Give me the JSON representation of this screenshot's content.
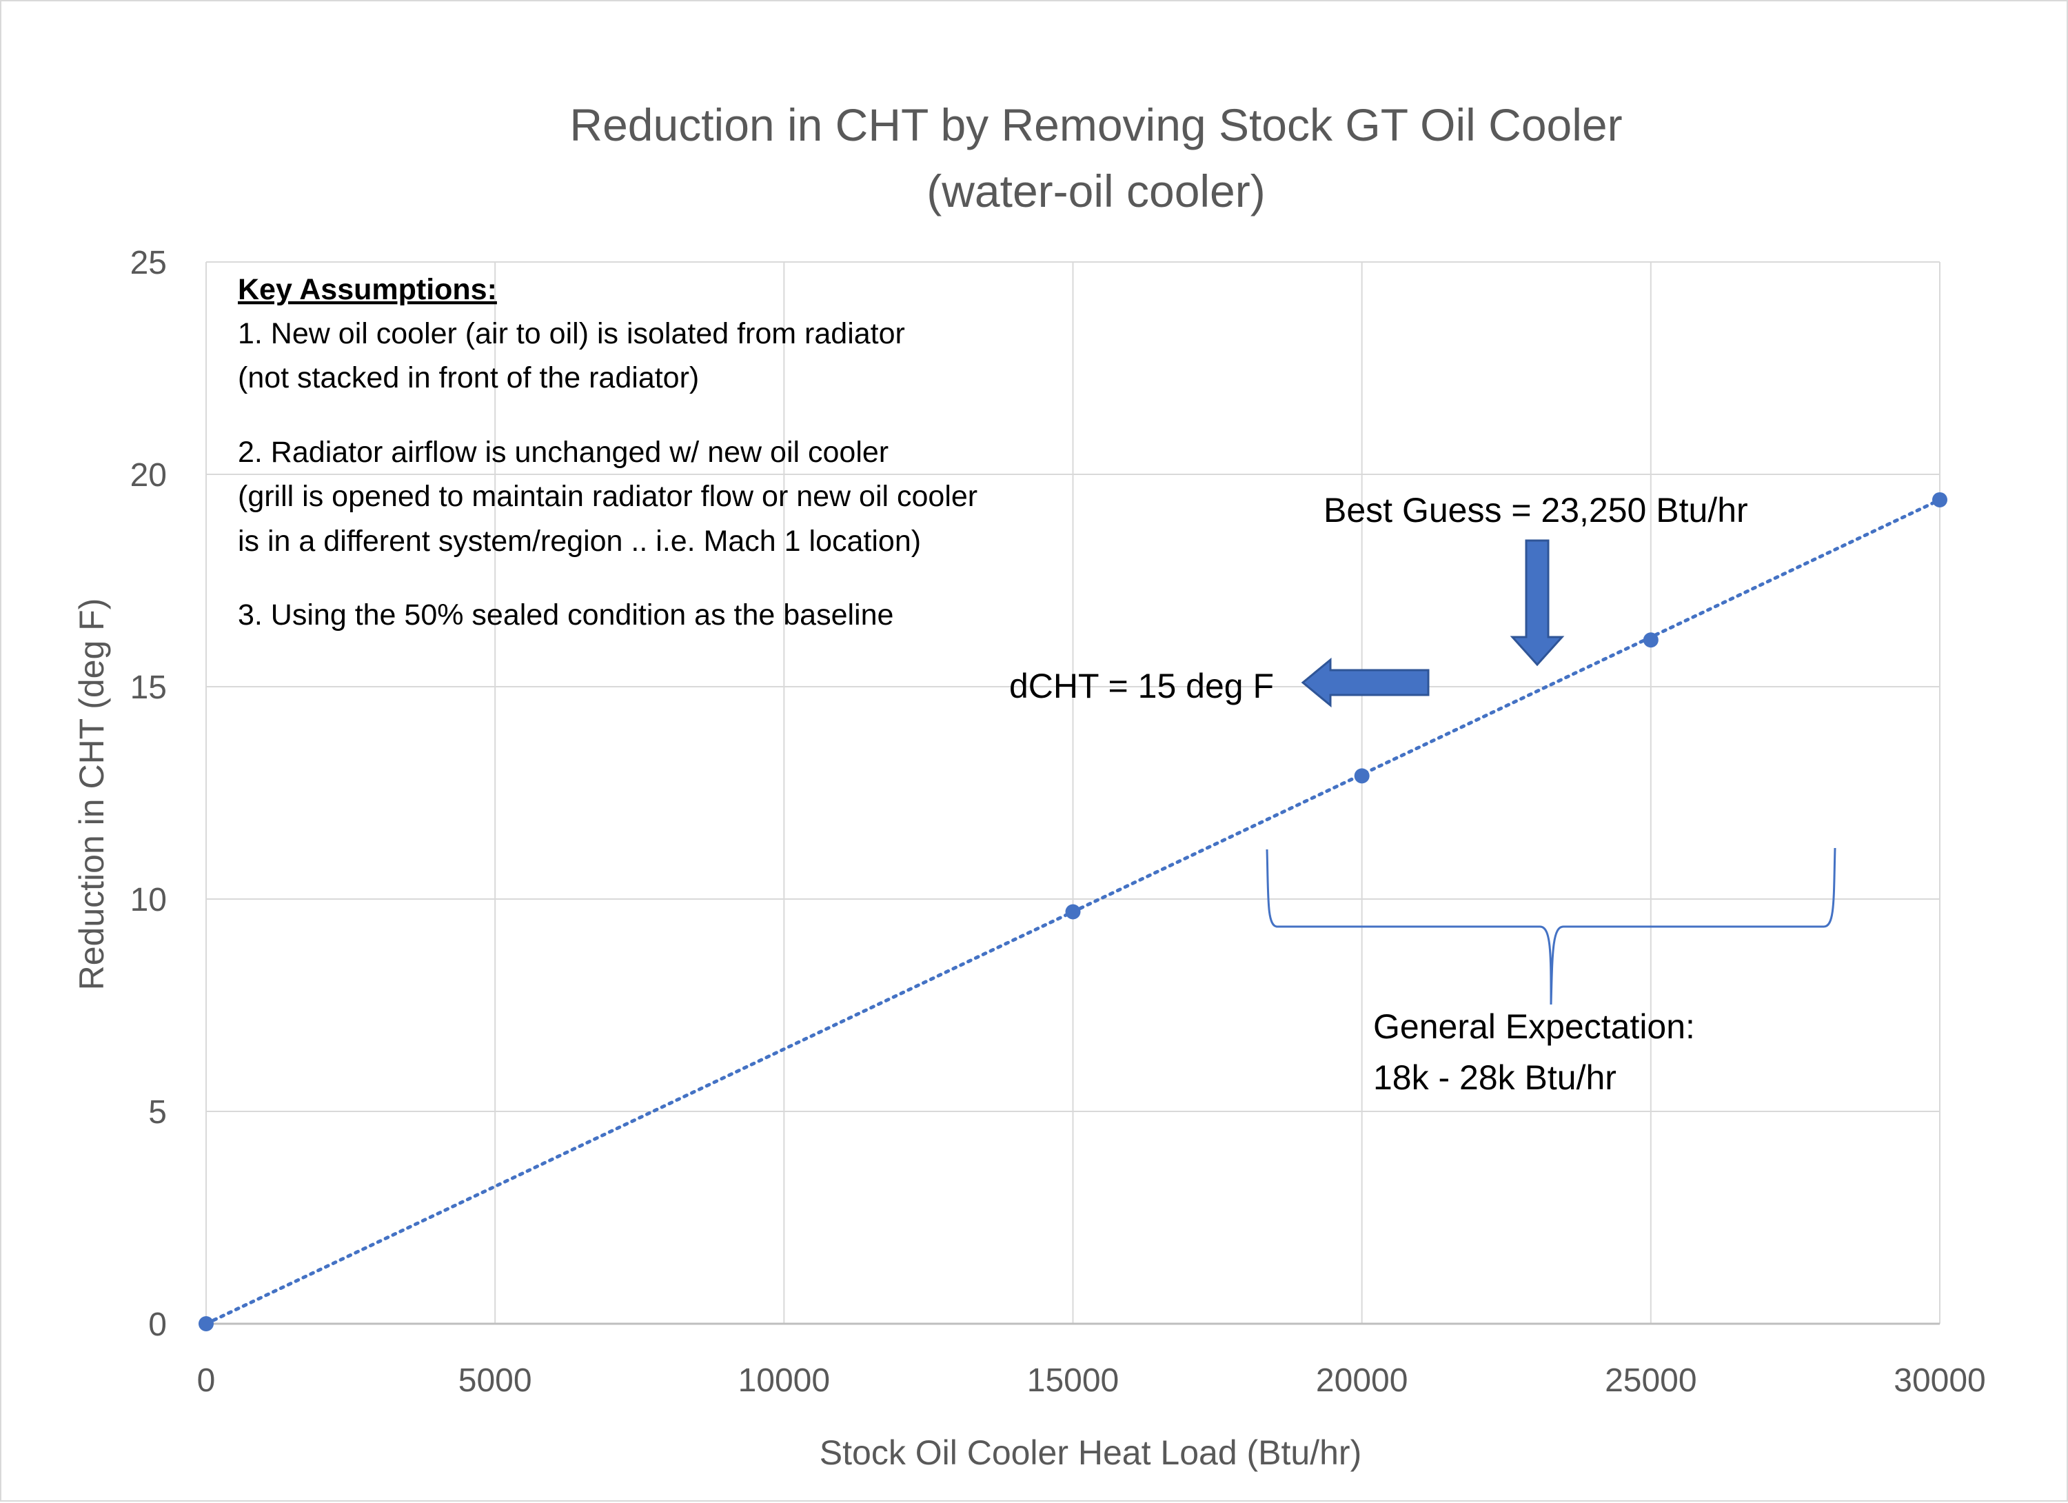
{
  "chart_data": {
    "type": "scatter",
    "title_line1": "Reduction in CHT by Removing Stock GT Oil Cooler",
    "title_line2": "(water-oil cooler)",
    "xlabel": "Stock Oil Cooler Heat Load (Btu/hr)",
    "ylabel": "Reduction in CHT (deg F)",
    "xlim": [
      0,
      30000
    ],
    "ylim": [
      0,
      25
    ],
    "x_ticks": [
      "0",
      "5000",
      "10000",
      "15000",
      "20000",
      "25000",
      "30000"
    ],
    "y_ticks": [
      "0",
      "5",
      "10",
      "15",
      "20",
      "25"
    ],
    "grid": true,
    "series_color": "#4472c4",
    "points": [
      {
        "x": 0,
        "y": 0
      },
      {
        "x": 15000,
        "y": 9.7
      },
      {
        "x": 20000,
        "y": 12.9
      },
      {
        "x": 25000,
        "y": 16.1
      },
      {
        "x": 30000,
        "y": 19.4
      }
    ],
    "trendline": {
      "style": "dotted",
      "from": [
        0,
        0
      ],
      "to": [
        30000,
        19.4
      ]
    },
    "annotations": {
      "assumptions_heading": "Key Assumptions:",
      "assumption_lines": [
        "1.  New oil cooler (air to oil) is isolated from radiator",
        "(not stacked in front of the radiator)",
        "2.  Radiator airflow is unchanged w/ new oil cooler",
        "(grill is opened to maintain radiator flow or new oil cooler",
        "is in a different system/region .. i.e. Mach 1 location)",
        "3.  Using the 50% sealed condition as the baseline"
      ],
      "best_guess": "Best Guess = 23,250 Btu/hr",
      "dcht": "dCHT = 15 deg F",
      "expectation_line1": "General Expectation:",
      "expectation_line2": "18k - 28k Btu/hr",
      "best_guess_x": 23250,
      "dcht_y": 15,
      "expectation_range": [
        18000,
        28000
      ]
    }
  }
}
